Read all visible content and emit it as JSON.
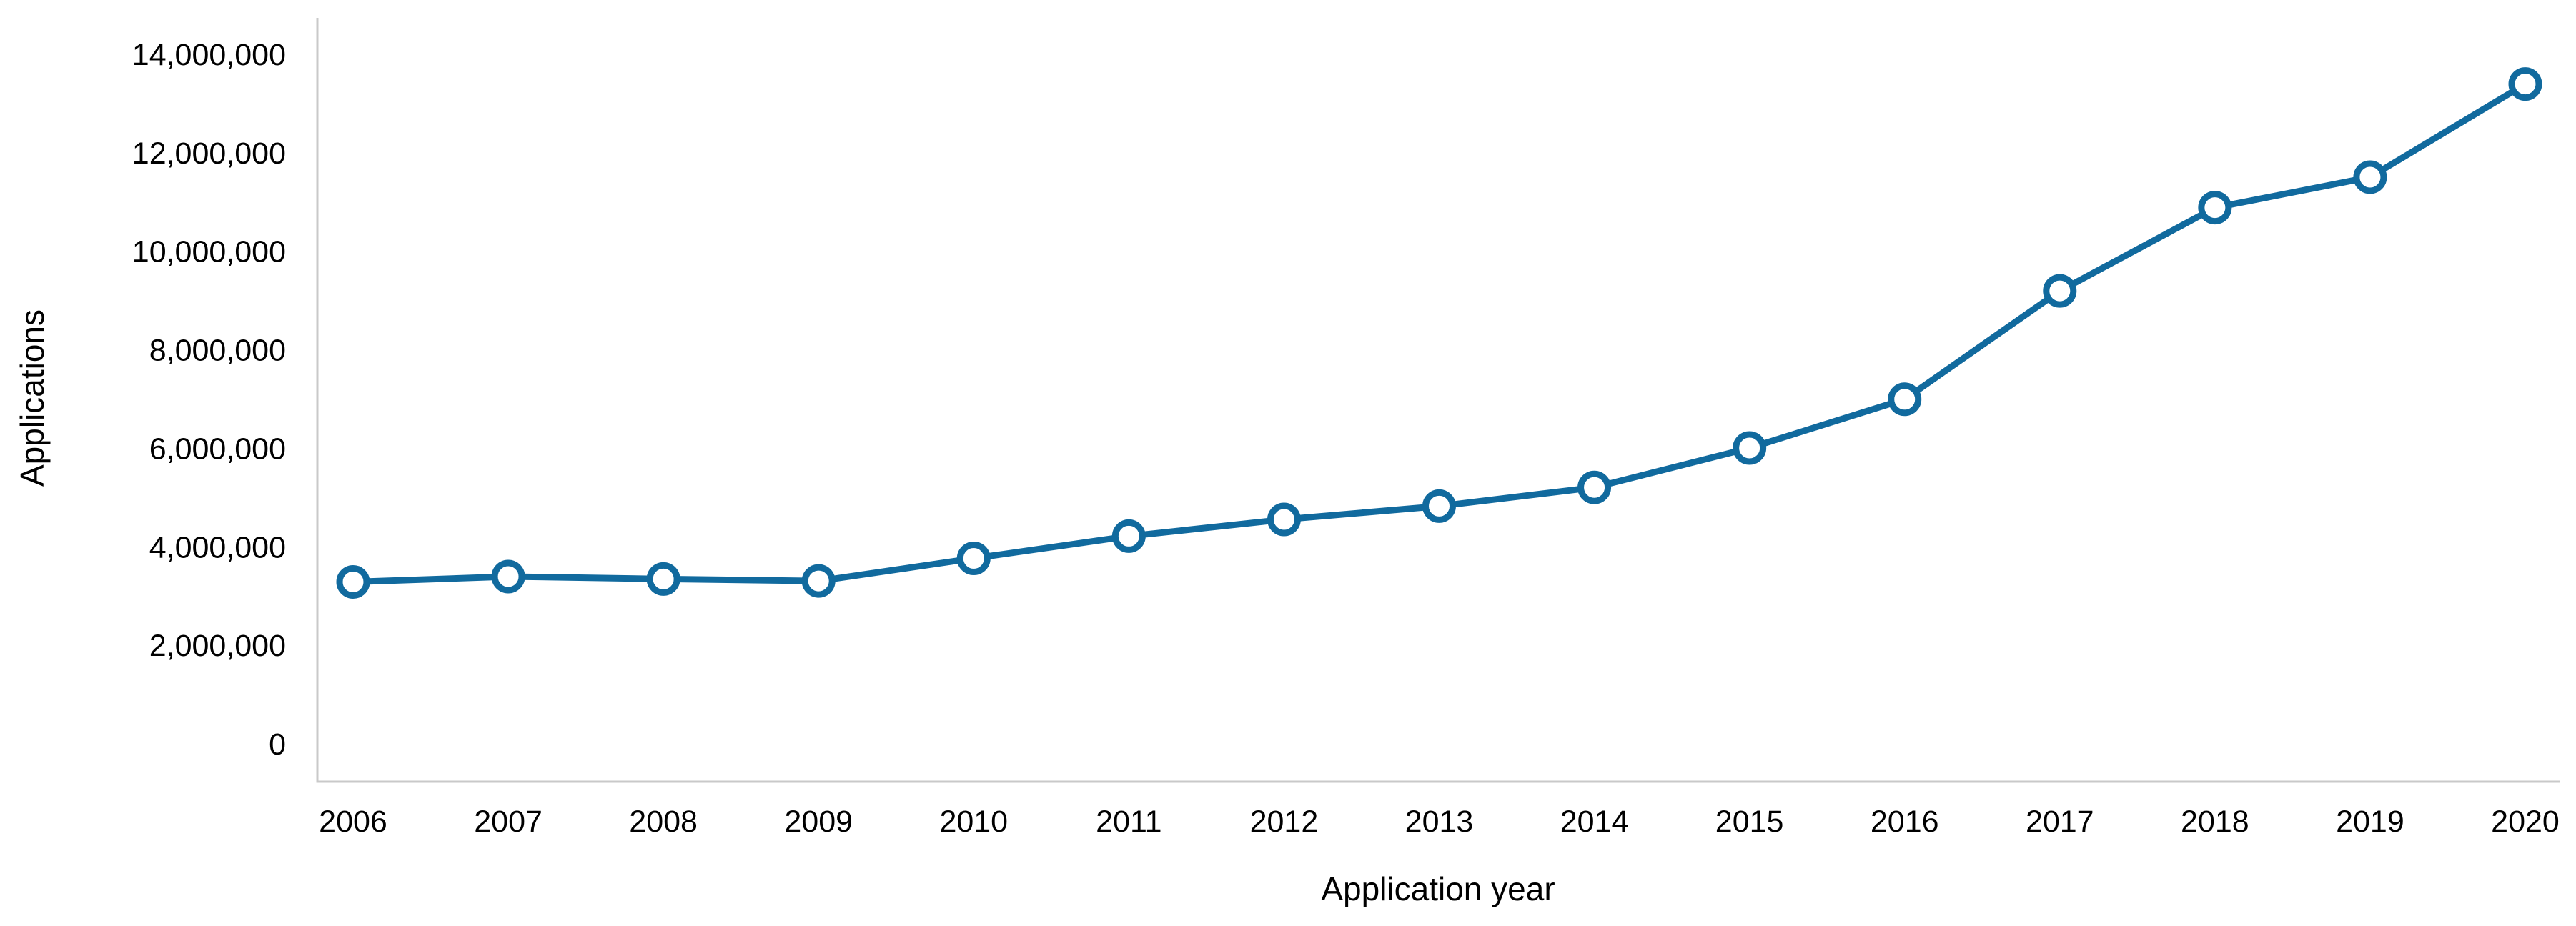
{
  "chart_data": {
    "type": "line",
    "title": "",
    "xlabel": "Application year",
    "ylabel": "Applications",
    "categories": [
      "2006",
      "2007",
      "2008",
      "2009",
      "2010",
      "2011",
      "2012",
      "2013",
      "2014",
      "2015",
      "2016",
      "2017",
      "2018",
      "2019",
      "2020"
    ],
    "series": [
      {
        "name": "Applications",
        "values": [
          3300000,
          3410000,
          3360000,
          3320000,
          3780000,
          4230000,
          4570000,
          4840000,
          5220000,
          6020000,
          7010000,
          9210000,
          10900000,
          11520000,
          13410000
        ]
      }
    ],
    "ylim": [
      0,
      14000000
    ],
    "ytick_step": 2000000,
    "ytick_values": [
      0,
      2000000,
      4000000,
      6000000,
      8000000,
      10000000,
      12000000,
      14000000
    ],
    "ytick_labels": [
      "0",
      "2,000,000",
      "4,000,000",
      "6,000,000",
      "8,000,000",
      "10,000,000",
      "12,000,000",
      "14,000,000"
    ],
    "grid": false,
    "legend": "none",
    "line_color": "#116a9e",
    "marker_style": "open-circle",
    "marker_fill": "#ffffff",
    "axis_line_color": "#c9c9c9",
    "label_color": "#000000"
  }
}
